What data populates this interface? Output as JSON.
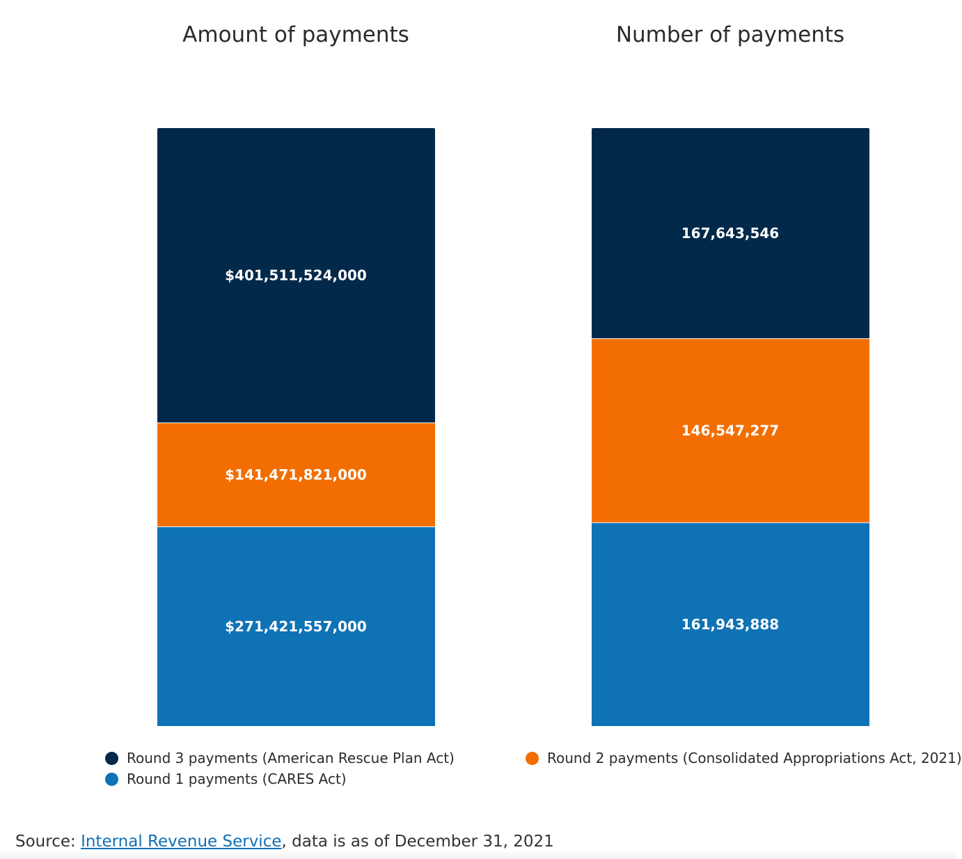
{
  "colors": {
    "round3": "#02294a",
    "round2": "#f26e00",
    "round1": "#0f72b5"
  },
  "chart_data": [
    {
      "type": "bar",
      "stacked": true,
      "title": "Amount of payments",
      "series": [
        {
          "name": "Round 1 payments (CARES Act)",
          "key": "round1",
          "value": 271421557000,
          "label": "$271,421,557,000"
        },
        {
          "name": "Round 2 payments (Consolidated Appropriations Act, 2021)",
          "key": "round2",
          "value": 141471821000,
          "label": "$141,471,821,000"
        },
        {
          "name": "Round 3 payments (American Rescue Plan Act)",
          "key": "round3",
          "value": 401511524000,
          "label": "$401,511,524,000"
        }
      ]
    },
    {
      "type": "bar",
      "stacked": true,
      "title": "Number of payments",
      "series": [
        {
          "name": "Round 1 payments (CARES Act)",
          "key": "round1",
          "value": 161943888,
          "label": "161,943,888"
        },
        {
          "name": "Round 2 payments (Consolidated Appropriations Act, 2021)",
          "key": "round2",
          "value": 146547277,
          "label": "146,547,277"
        },
        {
          "name": "Round 3 payments (American Rescue Plan Act)",
          "key": "round3",
          "value": 167643546,
          "label": "167,643,546"
        }
      ]
    }
  ],
  "legend": {
    "round3": "Round 3 payments (American Rescue Plan Act)",
    "round2": "Round 2 payments (Consolidated Appropriations Act, 2021)",
    "round1": "Round 1 payments (CARES Act)"
  },
  "source": {
    "prefix": "Source: ",
    "link_text": "Internal Revenue Service",
    "suffix": ", data is as of December 31, 2021"
  }
}
